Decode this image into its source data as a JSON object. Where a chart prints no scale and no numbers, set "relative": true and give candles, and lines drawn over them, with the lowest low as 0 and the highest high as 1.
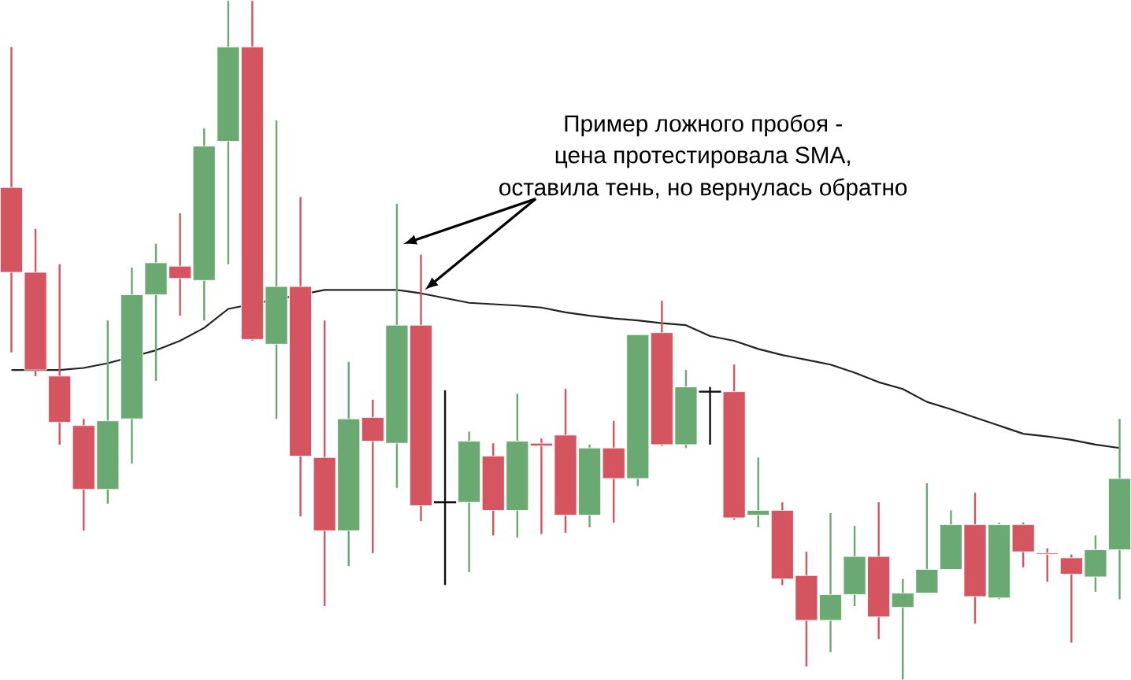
{
  "chart_data": {
    "type": "candlestick",
    "relative": true,
    "categories": [
      null,
      null,
      null,
      null,
      null,
      null,
      null,
      null,
      null,
      null,
      null,
      null,
      null,
      null,
      null,
      null,
      null,
      null,
      null,
      null,
      null,
      null,
      null,
      null,
      null,
      null,
      null,
      null,
      null,
      null,
      null,
      null,
      null,
      null,
      null,
      null,
      null,
      null,
      null,
      null,
      null,
      null,
      null,
      null,
      null,
      null,
      null
    ],
    "annotations": [
      "Пример ложного пробоя -",
      "цена протестировала SMA,",
      "оставила тень, но вернулась обратно"
    ],
    "series": [
      {
        "type": "line",
        "color": "#222222",
        "values": [
          0.456,
          0.456,
          0.456,
          0.459,
          0.466,
          null,
          0.485,
          0.499,
          0.518,
          0.546,
          null,
          null,
          null,
          0.574,
          0.574,
          0.574,
          0.574,
          0.569,
          0.562,
          0.555,
          0.553,
          0.551,
          0.548,
          0.541,
          0.536,
          0.532,
          0.529,
          0.525,
          0.522,
          0.506,
          0.499,
          0.487,
          0.478,
          0.471,
          0.464,
          0.452,
          0.438,
          0.428,
          0.409,
          0.398,
          0.386,
          0.374,
          0.362,
          0.358,
          0.353,
          0.346,
          0.341
        ]
      },
      {
        "type": "candlestick",
        "colors": [
          "#d45560",
          "#d45560",
          "#d45560",
          "#d45560",
          "#6aaa72",
          "#6aaa72",
          "#6aaa72",
          "#d45560",
          "#6aaa72",
          "#6aaa72",
          "#d45560",
          "#6aaa72",
          "#d45560",
          "#d45560",
          "#6aaa72",
          "#d45560",
          "#6aaa72",
          "#d45560",
          "#111111",
          "#6aaa72",
          "#d45560",
          "#6aaa72",
          "#d45560",
          "#d45560",
          "#6aaa72",
          "#d45560",
          "#6aaa72",
          "#d45560",
          "#6aaa72",
          "#111111",
          "#d45560",
          "#6aaa72",
          "#d45560",
          "#d45560",
          "#6aaa72",
          "#6aaa72",
          "#d45560",
          "#6aaa72",
          "#6aaa72",
          "#6aaa72",
          "#d45560",
          "#6aaa72",
          "#d45560",
          "#d45560",
          "#d45560",
          "#6aaa72",
          "#6aaa72"
        ],
        "ohlc": [
          [
            0.725,
            0.932,
            0.482,
            0.6
          ],
          [
            0.6,
            0.664,
            0.447,
            0.456
          ],
          [
            0.447,
            0.612,
            0.346,
            0.379
          ],
          [
            0.374,
            0.384,
            0.219,
            0.28
          ],
          [
            0.28,
            0.529,
            0.259,
            0.381
          ],
          [
            0.384,
            0.607,
            0.318,
            0.567
          ],
          [
            0.567,
            0.642,
            0.44,
            0.614
          ],
          [
            0.609,
            0.687,
            0.536,
            0.591
          ],
          [
            0.588,
            0.812,
            0.529,
            0.786
          ],
          [
            0.793,
            1,
            0.612,
            0.932
          ],
          [
            0.932,
            1,
            0.499,
            0.501
          ],
          [
            0.494,
            0.824,
            0.384,
            0.579
          ],
          [
            0.579,
            0.711,
            0.24,
            0.329
          ],
          [
            0.327,
            0.529,
            0.108,
            0.219
          ],
          [
            0.219,
            0.468,
            0.167,
            0.384
          ],
          [
            0.386,
            0.412,
            0.186,
            0.351
          ],
          [
            0.348,
            0.701,
            0.282,
            0.522
          ],
          [
            0.522,
            0.626,
            0.233,
            0.256
          ],
          [
            0.261,
            0.426,
            0.139,
            0.261
          ],
          [
            0.261,
            0.365,
            0.158,
            0.351
          ],
          [
            0.329,
            0.348,
            0.212,
            0.249
          ],
          [
            0.249,
            0.421,
            0.209,
            0.351
          ],
          [
            0.348,
            0.355,
            0.214,
            0.344
          ],
          [
            0.36,
            0.428,
            0.216,
            0.242
          ],
          [
            0.242,
            0.346,
            0.224,
            0.341
          ],
          [
            0.341,
            0.381,
            0.231,
            0.296
          ],
          [
            0.296,
            0.508,
            0.285,
            0.508
          ],
          [
            0.511,
            0.558,
            0.344,
            0.346
          ],
          [
            0.346,
            0.456,
            0.341,
            0.431
          ],
          [
            0.424,
            0.431,
            0.346,
            0.424
          ],
          [
            0.424,
            0.464,
            0.235,
            0.238
          ],
          [
            0.242,
            0.327,
            0.224,
            0.249
          ],
          [
            0.249,
            0.261,
            0.139,
            0.148
          ],
          [
            0.153,
            0.188,
            0.019,
            0.087
          ],
          [
            0.087,
            0.245,
            0.04,
            0.125
          ],
          [
            0.125,
            0.226,
            0.108,
            0.181
          ],
          [
            0.181,
            0.261,
            0.059,
            0.092
          ],
          [
            0.106,
            0.148,
            0,
            0.127
          ],
          [
            0.127,
            0.289,
            0.127,
            0.162
          ],
          [
            0.162,
            0.249,
            0.162,
            0.228
          ],
          [
            0.228,
            0.275,
            0.082,
            0.122
          ],
          [
            0.12,
            0.231,
            0.118,
            0.228
          ],
          [
            0.228,
            0.231,
            0.165,
            0.188
          ],
          [
            0.186,
            0.193,
            0.144,
            0.184
          ],
          [
            0.179,
            0.184,
            0.054,
            0.155
          ],
          [
            0.151,
            0.212,
            0.129,
            0.191
          ],
          [
            0.191,
            0.384,
            0.118,
            0.296
          ]
        ]
      }
    ]
  }
}
